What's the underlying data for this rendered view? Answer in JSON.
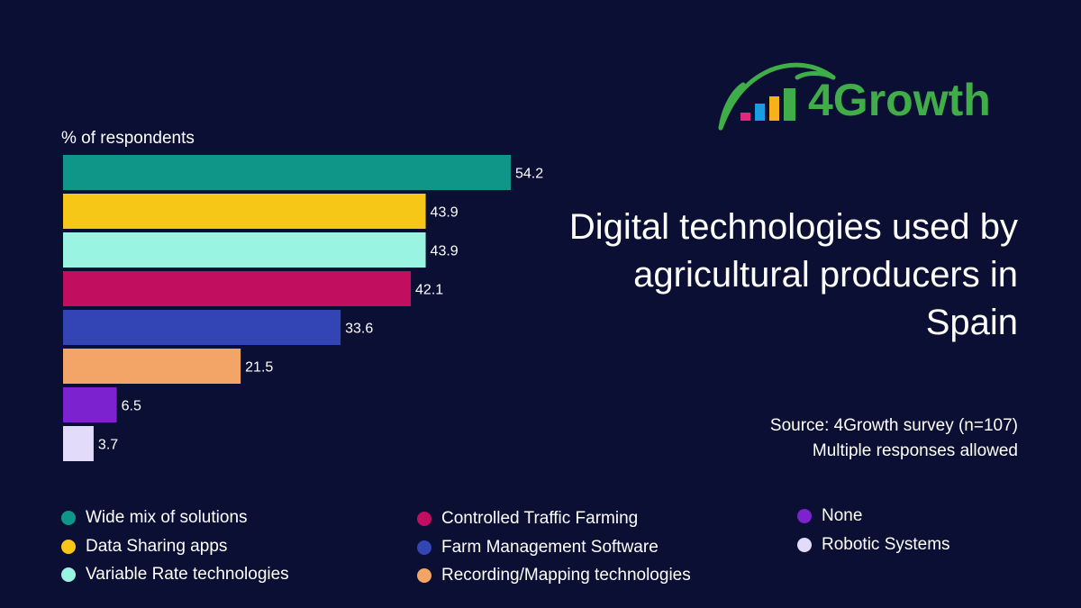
{
  "brand": {
    "name": "4Growth",
    "color": "#3fae49"
  },
  "headline": "Digital technologies used by agricultural producers in Spain",
  "source": [
    "Source: 4Growth survey (n=107)",
    "Multiple responses allowed"
  ],
  "chart_data": {
    "type": "bar",
    "orientation": "horizontal",
    "ylabel": "% of respondents",
    "xlim": [
      0,
      60
    ],
    "grid": false,
    "legend_position": "bottom",
    "categories": [
      "Wide mix of solutions",
      "Data Sharing apps",
      "Variable Rate technologies",
      "Controlled Traffic Farming",
      "Farm Management Software",
      "Recording/Mapping technologies",
      "None",
      "Robotic Systems"
    ],
    "values": [
      54.2,
      43.9,
      43.9,
      42.1,
      33.6,
      21.5,
      6.5,
      3.7
    ],
    "value_labels": [
      "54.2",
      "43.9",
      "43.9",
      "42.1",
      "33.6",
      "21.5",
      "6.5",
      "3.7"
    ],
    "colors": [
      "#0f9688",
      "#f7c717",
      "#9af4e2",
      "#c20e5f",
      "#3345b5",
      "#f2a566",
      "#7c22ce",
      "#e2dcfa"
    ]
  }
}
